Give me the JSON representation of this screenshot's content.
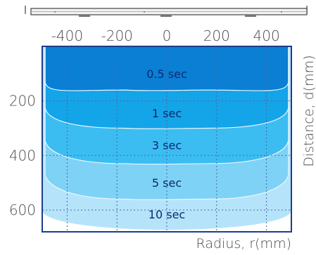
{
  "chart_data": {
    "type": "contour",
    "title": "",
    "xlabel": "Radius, r(mm)",
    "ylabel": "Distance, d(mm)",
    "x_ticks": [
      "-400",
      "-200",
      "0",
      "200",
      "400"
    ],
    "y_ticks": [
      "200",
      "400",
      "600"
    ],
    "xlim": [
      -500,
      500
    ],
    "ylim": [
      0,
      680
    ],
    "y_inverted": true,
    "grid": true,
    "zones": [
      {
        "label": "0.5 sec",
        "boundary_depth_mm": 160,
        "color": "#0a7fd4"
      },
      {
        "label": "1 sec",
        "boundary_depth_mm": 300,
        "color": "#14a4e8"
      },
      {
        "label": "3 sec",
        "boundary_depth_mm": 430,
        "color": "#3cbdf2"
      },
      {
        "label": "5 sec",
        "boundary_depth_mm": 560,
        "color": "#7ed2f6"
      },
      {
        "label": "10 sec",
        "boundary_depth_mm": 680,
        "color": "#b5e4fa"
      }
    ],
    "colors": {
      "frame": "#1b3d8c",
      "grid": "#4a66a8",
      "contour": "#e8f6fd"
    }
  },
  "fixture": {
    "name": "ceiling-fixture-icon"
  }
}
